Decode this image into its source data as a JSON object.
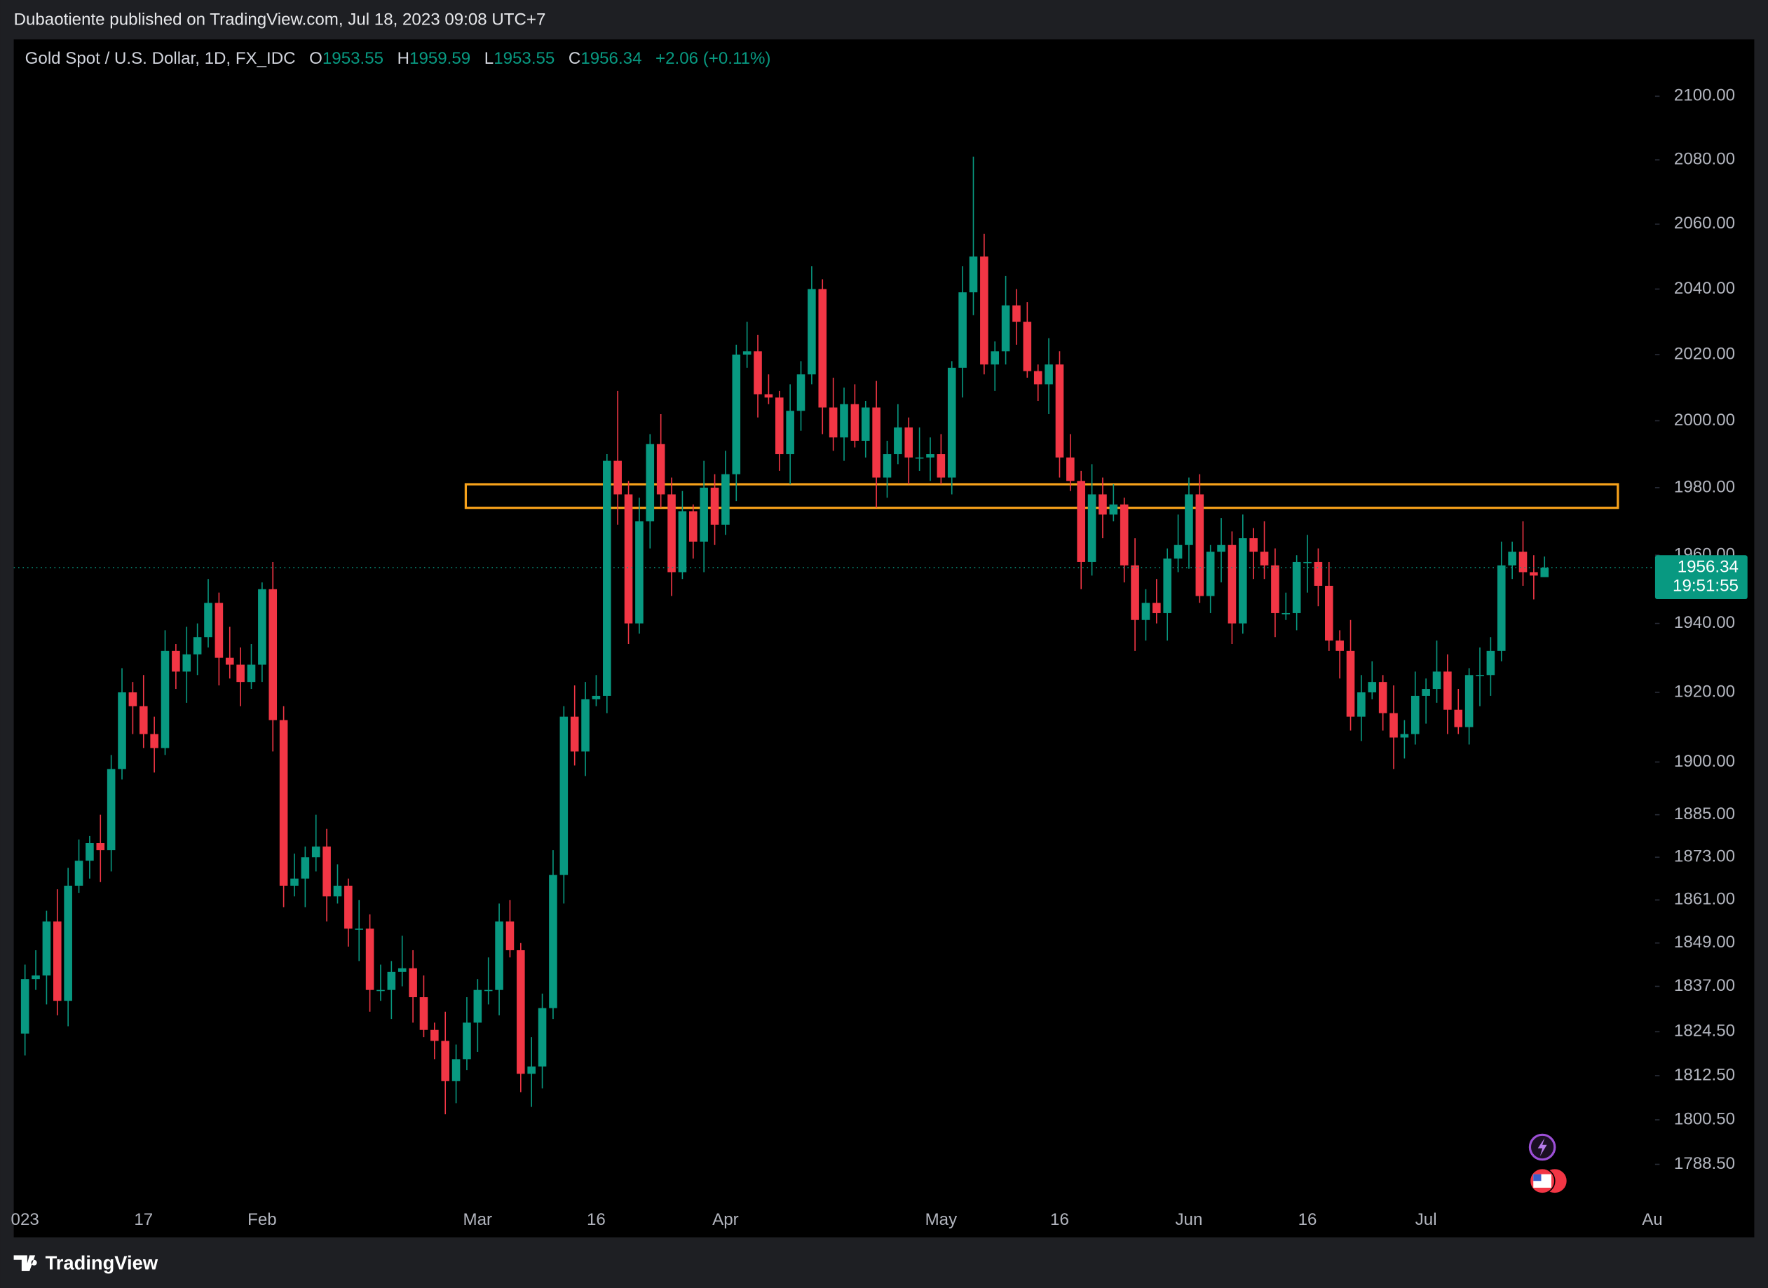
{
  "header": {
    "published": "Dubaotiente published on TradingView.com, Jul 18, 2023 09:08 UTC+7"
  },
  "chart_data": {
    "type": "candlestick",
    "title": "Gold Spot / U.S. Dollar, 1D, FX_IDC",
    "ohlc_letters": [
      "O",
      "H",
      "L",
      "C"
    ],
    "change": "+2.06 (+0.11%)",
    "countdown": "19:51:55",
    "up_color": "#089981",
    "down_color": "#f23645",
    "log_scale": true,
    "grid": false,
    "ylim": [
      1778,
      2118
    ],
    "yticks": [
      {
        "value": 2100,
        "label": "2100.00"
      },
      {
        "value": 2080,
        "label": "2080.00"
      },
      {
        "value": 2060,
        "label": "2060.00"
      },
      {
        "value": 2040,
        "label": "2040.00"
      },
      {
        "value": 2020,
        "label": "2020.00"
      },
      {
        "value": 2000,
        "label": "2000.00"
      },
      {
        "value": 1980,
        "label": "1980.00"
      },
      {
        "value": 1960,
        "label": "1960.00"
      },
      {
        "value": 1940,
        "label": "1940.00"
      },
      {
        "value": 1920,
        "label": "1920.00"
      },
      {
        "value": 1900,
        "label": "1900.00"
      },
      {
        "value": 1885,
        "label": "1885.00"
      },
      {
        "value": 1873,
        "label": "1873.00"
      },
      {
        "value": 1861,
        "label": "1861.00"
      },
      {
        "value": 1849,
        "label": "1849.00"
      },
      {
        "value": 1837,
        "label": "1837.00"
      },
      {
        "value": 1824.5,
        "label": "1824.50"
      },
      {
        "value": 1812.5,
        "label": "1812.50"
      },
      {
        "value": 1800.5,
        "label": "1800.50"
      },
      {
        "value": 1788.5,
        "label": "1788.50"
      }
    ],
    "zone": {
      "ylim": [
        1974,
        1981
      ],
      "color": "#f7a21b"
    },
    "categories": [
      "023",
      null,
      null,
      null,
      null,
      null,
      null,
      null,
      null,
      null,
      null,
      "17",
      null,
      null,
      null,
      null,
      null,
      null,
      null,
      null,
      null,
      null,
      "Feb",
      null,
      null,
      null,
      null,
      null,
      null,
      null,
      null,
      null,
      null,
      null,
      null,
      null,
      null,
      null,
      null,
      null,
      null,
      null,
      "Mar",
      null,
      null,
      null,
      null,
      null,
      null,
      null,
      null,
      null,
      null,
      "16",
      null,
      null,
      null,
      null,
      null,
      null,
      null,
      null,
      null,
      null,
      null,
      "Apr",
      null,
      null,
      null,
      null,
      null,
      null,
      null,
      null,
      null,
      null,
      null,
      null,
      null,
      null,
      null,
      null,
      null,
      null,
      null,
      "May",
      null,
      null,
      null,
      null,
      null,
      null,
      null,
      null,
      null,
      null,
      "16",
      null,
      null,
      null,
      null,
      null,
      null,
      null,
      null,
      null,
      null,
      null,
      "Jun",
      null,
      null,
      null,
      null,
      null,
      null,
      null,
      null,
      null,
      null,
      "16",
      null,
      null,
      null,
      null,
      null,
      null,
      null,
      null,
      null,
      null,
      "Jul",
      null,
      null,
      null,
      null,
      null,
      null,
      null,
      null,
      null,
      null,
      null,
      null,
      null,
      null,
      null,
      null,
      null,
      null,
      null,
      null,
      "Au"
    ],
    "open": [
      1824,
      1839,
      1840,
      1855,
      1833,
      1865,
      1872,
      1877,
      1875,
      1898,
      1920,
      1916,
      1908,
      1904,
      1932,
      1926,
      1931,
      1936,
      1946,
      1930,
      1928,
      1923,
      1928,
      1950,
      1912,
      1865,
      1867,
      1873,
      1876,
      1862,
      1865,
      1853,
      1853,
      1836,
      1836,
      1841,
      1842,
      1834,
      1825,
      1822,
      1811,
      1817,
      1827,
      1836,
      1836,
      1855,
      1847,
      1813,
      1815,
      1831,
      1868,
      1913,
      1903,
      1918,
      1919,
      1988,
      1978,
      1940,
      1970,
      1993,
      1978,
      1955,
      1973,
      1964,
      1980,
      1969,
      1984,
      2020,
      2021,
      2008,
      2007,
      1990,
      2003,
      2014,
      2040,
      2004,
      1995,
      2005,
      1994,
      2004,
      1983,
      1990,
      1998,
      1989,
      1989,
      1990,
      1983,
      2016,
      2039,
      2050,
      2017,
      2021,
      2035,
      2030,
      2015,
      2011,
      2017,
      1989,
      1982,
      1958,
      1978,
      1972,
      1975,
      1957,
      1941,
      1946,
      1943,
      1959,
      1963,
      1978,
      1948,
      1961,
      1963,
      1940,
      1965,
      1961,
      1957,
      1943,
      1943,
      1958,
      1958,
      1951,
      1935,
      1932,
      1913,
      1920,
      1923,
      1914,
      1907,
      1908,
      1919,
      1921,
      1926,
      1915,
      1910,
      1925,
      1925,
      1932,
      1957,
      1961,
      1955,
      1953.55,
      null,
      null,
      null,
      null,
      null,
      null,
      null,
      null,
      null,
      null
    ],
    "high": [
      1843,
      1847,
      1858,
      1864,
      1870,
      1878,
      1879,
      1885,
      1902,
      1927,
      1923,
      1925,
      1913,
      1938,
      1934,
      1939,
      1940,
      1953,
      1949,
      1939,
      1933,
      1934,
      1952,
      1958,
      1916,
      1874,
      1876,
      1885,
      1881,
      1871,
      1867,
      1861,
      1857,
      1843,
      1844,
      1851,
      1847,
      1840,
      1827,
      1830,
      1821,
      1834,
      1839,
      1845,
      1860,
      1861,
      1849,
      1823,
      1835,
      1875,
      1916,
      1922,
      1923,
      1925,
      1990,
      2009,
      1982,
      1977,
      1996,
      2002,
      1983,
      1979,
      1975,
      1988,
      1984,
      1991,
      2023,
      2030,
      2026,
      2014,
      2009,
      2011,
      2018,
      2047,
      2043,
      2013,
      2010,
      2011,
      2006,
      2012,
      1994,
      2005,
      2001,
      1998,
      1995,
      1996,
      2018,
      2047,
      2081,
      2057,
      2024,
      2044,
      2040,
      2036,
      2017,
      2025,
      2021,
      1996,
      1985,
      1987,
      1983,
      1981,
      1977,
      1965,
      1950,
      1953,
      1962,
      1972,
      1983,
      1984,
      1963,
      1971,
      1967,
      1972,
      1968,
      1970,
      1962,
      1949,
      1960,
      1966,
      1962,
      1958,
      1938,
      1941,
      1925,
      1929,
      1925,
      1922,
      1912,
      1926,
      1924,
      1935,
      1931,
      1921,
      1927,
      1933,
      1936,
      1964,
      1964,
      1970,
      1960,
      1959.59,
      null,
      null,
      null,
      null,
      null,
      null,
      null,
      null,
      null,
      null
    ],
    "low": [
      1818,
      1836,
      1832,
      1829,
      1826,
      1863,
      1867,
      1866,
      1869,
      1895,
      1908,
      1904,
      1897,
      1902,
      1921,
      1917,
      1925,
      1933,
      1922,
      1924,
      1916,
      1921,
      1923,
      1903,
      1859,
      1862,
      1859,
      1869,
      1855,
      1860,
      1848,
      1844,
      1830,
      1833,
      1828,
      1837,
      1827,
      1823,
      1817,
      1802,
      1805,
      1814,
      1819,
      1832,
      1829,
      1845,
      1808,
      1804,
      1809,
      1828,
      1860,
      1899,
      1896,
      1916,
      1914,
      1969,
      1934,
      1937,
      1962,
      1974,
      1948,
      1953,
      1959,
      1955,
      1963,
      1966,
      1976,
      2016,
      2001,
      2005,
      1985,
      1981,
      1997,
      2011,
      1996,
      1991,
      1988,
      1992,
      1989,
      1974,
      1977,
      1987,
      1981,
      1985,
      1982,
      1981,
      1978,
      2007,
      2032,
      2014,
      2009,
      2017,
      2023,
      2013,
      2006,
      2002,
      1983,
      1979,
      1950,
      1954,
      1965,
      1970,
      1952,
      1932,
      1935,
      1940,
      1935,
      1955,
      1956,
      1946,
      1943,
      1952,
      1934,
      1937,
      1953,
      1953,
      1936,
      1941,
      1938,
      1949,
      1945,
      1932,
      1924,
      1909,
      1906,
      1918,
      1909,
      1898,
      1901,
      1905,
      1911,
      1917,
      1908,
      1908,
      1905,
      1916,
      1919,
      1929,
      1953,
      1951,
      1947,
      1953.55,
      null,
      null,
      null,
      null,
      null,
      null,
      null,
      null,
      null,
      null
    ],
    "close": [
      1839,
      1840,
      1855,
      1833,
      1865,
      1872,
      1877,
      1875,
      1898,
      1920,
      1916,
      1908,
      1904,
      1932,
      1926,
      1931,
      1936,
      1946,
      1930,
      1928,
      1923,
      1928,
      1950,
      1912,
      1865,
      1867,
      1873,
      1876,
      1862,
      1865,
      1853,
      1853,
      1836,
      1836,
      1841,
      1842,
      1834,
      1825,
      1822,
      1811,
      1817,
      1827,
      1836,
      1836,
      1855,
      1847,
      1813,
      1815,
      1831,
      1868,
      1913,
      1903,
      1918,
      1919,
      1988,
      1978,
      1940,
      1970,
      1993,
      1978,
      1955,
      1973,
      1964,
      1980,
      1969,
      1984,
      2020,
      2021,
      2008,
      2007,
      1990,
      2003,
      2014,
      2040,
      2004,
      1995,
      2005,
      1994,
      2004,
      1983,
      1990,
      1998,
      1989,
      1989,
      1990,
      1983,
      2016,
      2039,
      2050,
      2017,
      2021,
      2035,
      2030,
      2015,
      2011,
      2017,
      1989,
      1982,
      1958,
      1978,
      1972,
      1975,
      1957,
      1941,
      1946,
      1943,
      1959,
      1963,
      1978,
      1948,
      1961,
      1963,
      1940,
      1965,
      1961,
      1957,
      1943,
      1943,
      1958,
      1958,
      1951,
      1935,
      1932,
      1913,
      1920,
      1923,
      1914,
      1907,
      1908,
      1919,
      1921,
      1926,
      1915,
      1910,
      1925,
      1925,
      1932,
      1957,
      1961,
      1955,
      1954,
      1956.34,
      null,
      null,
      null,
      null,
      null,
      null,
      null,
      null,
      null,
      null
    ]
  },
  "footer": {
    "brand": "TradingView"
  }
}
